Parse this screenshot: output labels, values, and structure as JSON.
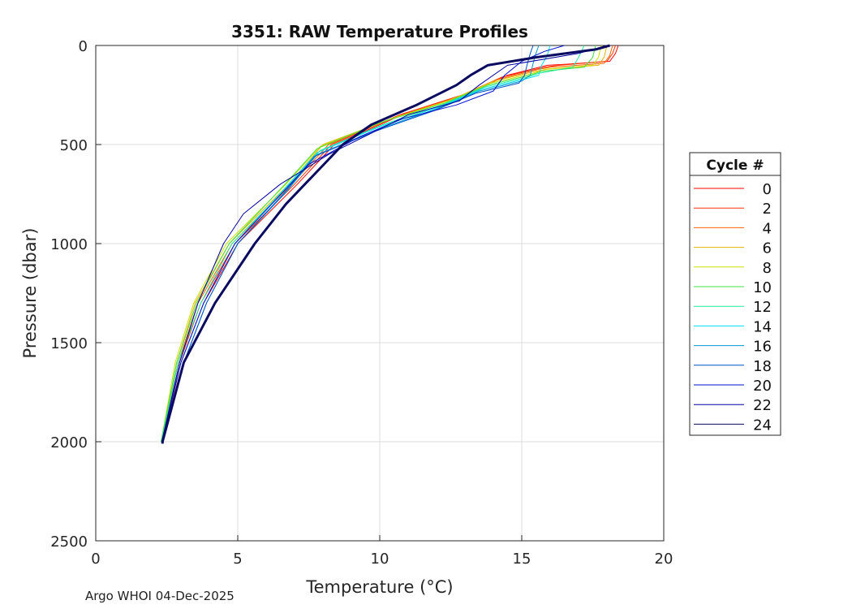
{
  "footer": "Argo WHOI 04-Dec-2025",
  "chart_data": {
    "type": "line",
    "title": "3351: RAW Temperature Profiles",
    "xlabel": "Temperature (°C)",
    "ylabel": "Pressure (dbar)",
    "xlim": [
      0,
      20
    ],
    "ylim": [
      0,
      2500
    ],
    "y_reversed": true,
    "grid": true,
    "x_ticks": [
      0,
      5,
      10,
      15,
      20
    ],
    "y_ticks": [
      0,
      500,
      1000,
      1500,
      2000,
      2500
    ],
    "legend": {
      "title": "Cycle #",
      "position": "right"
    },
    "series": [
      {
        "name": "0",
        "color": "#ff0000",
        "pressure": [
          0,
          40,
          80,
          95,
          100,
          150,
          250,
          350,
          500,
          700,
          1000,
          1300,
          1600,
          2000
        ],
        "temperature": [
          18.4,
          18.3,
          18.1,
          16.5,
          15.9,
          14.5,
          13.0,
          10.8,
          8.4,
          7.1,
          5.0,
          3.8,
          3.0,
          2.35
        ]
      },
      {
        "name": "2",
        "color": "#ff3000",
        "pressure": [
          0,
          40,
          80,
          100,
          110,
          160,
          250,
          350,
          500,
          700,
          1000,
          1300,
          1600,
          2000
        ],
        "temperature": [
          18.3,
          18.2,
          18.0,
          16.3,
          15.8,
          14.3,
          12.9,
          10.7,
          8.3,
          7.0,
          4.9,
          3.7,
          2.95,
          2.33
        ]
      },
      {
        "name": "4",
        "color": "#ff6000",
        "pressure": [
          0,
          50,
          90,
          110,
          120,
          170,
          260,
          360,
          500,
          700,
          1000,
          1300,
          1600,
          2000
        ],
        "temperature": [
          18.2,
          18.1,
          17.9,
          16.0,
          15.6,
          14.2,
          12.8,
          10.6,
          8.2,
          6.9,
          4.8,
          3.6,
          2.9,
          2.32
        ]
      },
      {
        "name": "6",
        "color": "#e8b000",
        "pressure": [
          0,
          60,
          100,
          120,
          130,
          180,
          270,
          370,
          500,
          700,
          1000,
          1300,
          1600,
          2000
        ],
        "temperature": [
          18.0,
          17.9,
          17.7,
          15.9,
          15.5,
          14.0,
          12.6,
          10.4,
          8.0,
          6.8,
          4.7,
          3.5,
          2.85,
          2.31
        ]
      },
      {
        "name": "8",
        "color": "#c8e000",
        "pressure": [
          0,
          60,
          100,
          120,
          140,
          190,
          280,
          380,
          510,
          700,
          1000,
          1300,
          1600,
          2000
        ],
        "temperature": [
          17.8,
          17.7,
          17.5,
          15.8,
          15.4,
          13.9,
          12.4,
          10.2,
          7.9,
          6.7,
          4.6,
          3.45,
          2.8,
          2.3
        ]
      },
      {
        "name": "10",
        "color": "#40e040",
        "pressure": [
          0,
          60,
          110,
          130,
          150,
          200,
          290,
          390,
          520,
          710,
          1000,
          1300,
          1600,
          2000
        ],
        "temperature": [
          17.6,
          17.5,
          17.2,
          15.7,
          15.3,
          13.8,
          12.3,
          10.0,
          7.8,
          6.6,
          4.7,
          3.55,
          2.85,
          2.3
        ]
      },
      {
        "name": "12",
        "color": "#20e8a0",
        "pressure": [
          0,
          60,
          110,
          140,
          160,
          210,
          300,
          400,
          530,
          720,
          1000,
          1300,
          1600,
          2000
        ],
        "temperature": [
          17.2,
          17.0,
          16.8,
          15.6,
          15.2,
          13.7,
          12.2,
          10.1,
          7.9,
          6.7,
          4.8,
          3.7,
          2.9,
          2.31
        ]
      },
      {
        "name": "14",
        "color": "#00e0f0",
        "pressure": [
          0,
          50,
          100,
          150,
          170,
          220,
          310,
          410,
          540,
          730,
          1000,
          1300,
          1600,
          2000
        ],
        "temperature": [
          16.0,
          15.9,
          15.7,
          15.6,
          15.1,
          13.6,
          12.1,
          10.0,
          7.8,
          6.6,
          4.9,
          3.8,
          3.0,
          2.32
        ]
      },
      {
        "name": "16",
        "color": "#0098d0",
        "pressure": [
          0,
          40,
          90,
          150,
          180,
          230,
          320,
          420,
          550,
          740,
          1000,
          1300,
          1600,
          2000
        ],
        "temperature": [
          15.6,
          15.5,
          15.4,
          15.3,
          15.0,
          13.5,
          12.0,
          10.0,
          7.8,
          6.7,
          5.0,
          3.9,
          3.1,
          2.33
        ]
      },
      {
        "name": "18",
        "color": "#0050c8",
        "pressure": [
          0,
          40,
          90,
          150,
          190,
          240,
          330,
          430,
          560,
          750,
          1000,
          1300,
          1600,
          2000
        ],
        "temperature": [
          15.4,
          15.3,
          15.2,
          15.1,
          14.9,
          13.4,
          11.9,
          9.9,
          7.7,
          6.6,
          5.0,
          3.9,
          3.1,
          2.33
        ]
      },
      {
        "name": "20",
        "color": "#0010d0",
        "pressure": [
          0,
          30,
          80,
          150,
          230,
          300,
          370,
          460,
          600,
          800,
          1000,
          1300,
          1600,
          2000
        ],
        "temperature": [
          16.5,
          15.8,
          15.0,
          14.4,
          14.0,
          12.7,
          10.8,
          9.3,
          7.5,
          6.2,
          4.9,
          3.8,
          3.0,
          2.32
        ]
      },
      {
        "name": "22",
        "color": "#0000a0",
        "pressure": [
          0,
          40,
          100,
          200,
          280,
          350,
          450,
          550,
          700,
          850,
          1000,
          1300,
          1600,
          2000
        ],
        "temperature": [
          18.0,
          17.0,
          14.5,
          13.5,
          12.8,
          11.0,
          9.6,
          8.2,
          6.5,
          5.2,
          4.5,
          3.6,
          2.95,
          2.33
        ]
      },
      {
        "name": "24",
        "color": "#0a0a60",
        "pressure": [
          0,
          20,
          60,
          100,
          150,
          200,
          300,
          400,
          500,
          650,
          800,
          1000,
          1300,
          1600,
          2000,
          2010
        ],
        "temperature": [
          18.1,
          17.6,
          15.5,
          13.8,
          13.2,
          12.7,
          11.3,
          9.7,
          8.7,
          7.7,
          6.7,
          5.6,
          4.2,
          3.1,
          2.35,
          2.35
        ]
      }
    ]
  }
}
